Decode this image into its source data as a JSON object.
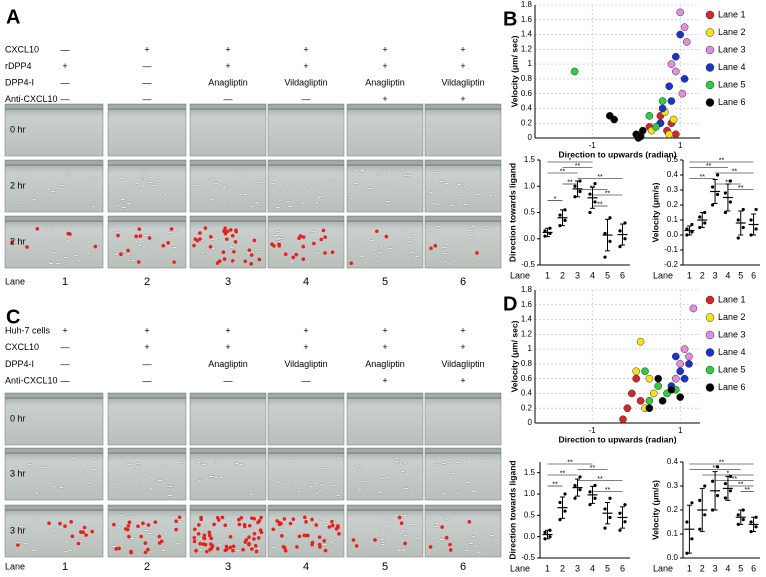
{
  "panels": [
    {
      "label": "A",
      "conditions": [
        {
          "name": "CXCL10",
          "values": [
            "—",
            "+",
            "+",
            "+",
            "+",
            "+"
          ]
        },
        {
          "name": "rDPP4",
          "values": [
            "+",
            "—",
            "+",
            "+",
            "+",
            "+"
          ]
        },
        {
          "name": "DPP4-I",
          "values": [
            "—",
            "—",
            "Anagliptin",
            "Vildagliptin",
            "Anagliptin",
            "Vildagliptin"
          ]
        },
        {
          "name": "Anti-CXCL10",
          "values": [
            "—",
            "—",
            "—",
            "—",
            "+",
            "+"
          ]
        }
      ],
      "times": [
        "0 hr",
        "2 hr",
        "2 hr"
      ],
      "lane_title": "Lane",
      "lanes": [
        "1",
        "2",
        "3",
        "4",
        "5",
        "6"
      ]
    },
    {
      "label": "C",
      "conditions": [
        {
          "name": "Huh-7 cells",
          "values": [
            "+",
            "+",
            "+",
            "+",
            "+",
            "+"
          ]
        },
        {
          "name": "CXCL10",
          "values": [
            "—",
            "+",
            "+",
            "+",
            "+",
            "+"
          ]
        },
        {
          "name": "DPP4-I",
          "values": [
            "—",
            "—",
            "Anagliptin",
            "Vildagliptin",
            "Anagliptin",
            "Vildagliptin"
          ]
        },
        {
          "name": "Anti-CXCL10",
          "values": [
            "—",
            "—",
            "—",
            "—",
            "+",
            "+"
          ]
        }
      ],
      "times": [
        "0 hr",
        "3 hr",
        "3 hr"
      ],
      "lane_title": "Lane",
      "lanes": [
        "1",
        "2",
        "3",
        "4",
        "5",
        "6"
      ]
    }
  ],
  "chart_data": [
    {
      "type": "scatter",
      "panel": "B",
      "xlabel": "Direction to upwards (radian)",
      "ylabel": "Velocity (μm/ sec)",
      "xlim": [
        -2.3,
        1.45
      ],
      "ylim": [
        0,
        1.8
      ],
      "xticks": [
        -1,
        1
      ],
      "yticks": [
        0,
        0.2,
        0.4,
        0.6,
        0.8,
        1,
        1.2,
        1.4,
        1.6,
        1.8
      ],
      "grid": true,
      "series": [
        {
          "name": "Lane 1",
          "color": "#d62728",
          "x": [
            0.3,
            0.55,
            0.7,
            0.9,
            0.8
          ],
          "y": [
            0.15,
            0.3,
            0.1,
            0.05,
            0.2
          ]
        },
        {
          "name": "Lane 2",
          "color": "#f5e31a",
          "x": [
            0.35,
            0.55,
            0.65,
            0.85,
            0.75
          ],
          "y": [
            0.1,
            0.2,
            0.35,
            0.25,
            0.05
          ]
        },
        {
          "name": "Lane 3",
          "color": "#e38de0",
          "x": [
            1.0,
            1.1,
            0.9,
            1.15,
            1.05,
            0.8
          ],
          "y": [
            1.7,
            1.5,
            0.9,
            1.3,
            0.6,
            1.0
          ]
        },
        {
          "name": "Lane 4",
          "color": "#1c33c9",
          "x": [
            0.6,
            0.75,
            0.9,
            1.0,
            1.1,
            0.55,
            0.8
          ],
          "y": [
            0.4,
            0.7,
            1.1,
            1.4,
            0.8,
            0.2,
            0.5
          ]
        },
        {
          "name": "Lane 5",
          "color": "#2ecc40",
          "x": [
            -1.4,
            0.3,
            0.45,
            0.6,
            0.1
          ],
          "y": [
            0.9,
            0.3,
            0.15,
            0.5,
            0.05
          ]
        },
        {
          "name": "Lane 6",
          "color": "#000000",
          "x": [
            -0.6,
            -0.5,
            0.0,
            0.05,
            0.1,
            0.15
          ],
          "y": [
            0.3,
            0.25,
            0.05,
            0.0,
            0.02,
            0.1
          ]
        }
      ]
    },
    {
      "type": "dot",
      "ylabel": "Direction towards ligand",
      "lane_title": "Lane",
      "categories": [
        "1",
        "2",
        "3",
        "4",
        "5",
        "6"
      ],
      "ylim": [
        -0.5,
        1.5
      ],
      "yticks": [
        -0.5,
        {
          "value": 0,
          "label": "0.0"
        },
        0.5,
        {
          "value": 1,
          "label": "1.0"
        },
        1.5
      ],
      "points": [
        [
          0.05,
          0.1,
          0.15,
          0.2
        ],
        [
          0.25,
          0.35,
          0.45,
          0.55
        ],
        [
          0.8,
          0.9,
          1.0,
          1.1
        ],
        [
          0.5,
          0.7,
          0.85,
          1.05
        ],
        [
          -0.35,
          -0.05,
          0.1,
          0.4
        ],
        [
          -0.15,
          0.0,
          0.15,
          0.3
        ]
      ],
      "mean": [
        0.12,
        0.4,
        0.95,
        0.78,
        0.07,
        0.08
      ],
      "sd": [
        0.08,
        0.15,
        0.15,
        0.2,
        0.3,
        0.2
      ],
      "brackets": [
        {
          "from": "1",
          "to": "4",
          "label": "*"
        },
        {
          "from": "2",
          "to": "4",
          "label": "**"
        },
        {
          "from": "1",
          "to": "3",
          "label": "**"
        },
        {
          "from": "3",
          "to": "6",
          "label": "**"
        },
        {
          "from": "2",
          "to": "3",
          "label": "**"
        },
        {
          "from": "3",
          "to": "5",
          "label": "**"
        },
        {
          "from": "4",
          "to": "6",
          "label": "**"
        },
        {
          "from": "1",
          "to": "2",
          "label": "*"
        },
        {
          "from": "4",
          "to": "5",
          "label": "**"
        }
      ]
    },
    {
      "type": "dot",
      "ylabel": "Velocity (μm/s)",
      "lane_title": "Lane",
      "categories": [
        "1",
        "2",
        "3",
        "4",
        "5",
        "6"
      ],
      "ylim": [
        -0.2,
        0.5
      ],
      "yticks": [
        -0.2,
        -0.1,
        {
          "value": 0,
          "label": "0.0"
        },
        0.1,
        0.2,
        0.3,
        0.4,
        0.5
      ],
      "points": [
        [
          0.0,
          0.02,
          0.04,
          0.07
        ],
        [
          0.05,
          0.08,
          0.12,
          0.15
        ],
        [
          0.2,
          0.27,
          0.32,
          0.4
        ],
        [
          0.15,
          0.22,
          0.28,
          0.36
        ],
        [
          -0.02,
          0.05,
          0.1,
          0.17
        ],
        [
          0.0,
          0.04,
          0.1,
          0.17
        ]
      ],
      "mean": [
        0.03,
        0.1,
        0.29,
        0.25,
        0.08,
        0.07
      ],
      "sd": [
        0.03,
        0.05,
        0.08,
        0.09,
        0.08,
        0.07
      ],
      "brackets": [
        {
          "from": "1",
          "to": "6",
          "label": "**"
        },
        {
          "from": "1",
          "to": "4",
          "label": "**"
        },
        {
          "from": "3",
          "to": "6",
          "label": "**"
        },
        {
          "from": "1",
          "to": "3",
          "label": "**"
        },
        {
          "from": "3",
          "to": "5",
          "label": "**"
        },
        {
          "from": "4",
          "to": "6",
          "label": "**"
        }
      ]
    },
    {
      "type": "scatter",
      "panel": "D",
      "xlabel": "Direction to upwards (radian)",
      "ylabel": "Velocity (μm/ sec)",
      "xlim": [
        -2.3,
        1.45
      ],
      "ylim": [
        0,
        1.8
      ],
      "xticks": [
        -1,
        1
      ],
      "yticks": [
        0,
        0.2,
        0.4,
        0.6,
        0.8,
        1,
        1.2,
        1.4,
        1.6,
        1.8
      ],
      "grid": true,
      "series": [
        {
          "name": "Lane 1",
          "color": "#d62728",
          "x": [
            -0.3,
            -0.1,
            0.0,
            0.1,
            -0.2
          ],
          "y": [
            0.05,
            0.4,
            0.6,
            0.3,
            0.2
          ]
        },
        {
          "name": "Lane 2",
          "color": "#f5e31a",
          "x": [
            0.1,
            0.3,
            0.4,
            0.0,
            0.2
          ],
          "y": [
            1.1,
            0.6,
            0.4,
            0.7,
            0.2
          ]
        },
        {
          "name": "Lane 3",
          "color": "#e38de0",
          "x": [
            1.3,
            1.1,
            1.0,
            0.9,
            1.2
          ],
          "y": [
            1.55,
            1.0,
            0.8,
            0.6,
            0.9
          ]
        },
        {
          "name": "Lane 4",
          "color": "#1c33c9",
          "x": [
            0.9,
            1.0,
            1.1,
            0.8,
            1.2
          ],
          "y": [
            0.9,
            0.7,
            0.6,
            0.5,
            0.8
          ]
        },
        {
          "name": "Lane 5",
          "color": "#2ecc40",
          "x": [
            0.2,
            0.5,
            0.7,
            0.3,
            0.9
          ],
          "y": [
            0.7,
            0.5,
            0.4,
            0.3,
            0.45
          ]
        },
        {
          "name": "Lane 6",
          "color": "#000000",
          "x": [
            0.3,
            0.6,
            0.8,
            0.5,
            1.0
          ],
          "y": [
            0.2,
            0.3,
            0.45,
            0.6,
            0.35
          ]
        }
      ]
    },
    {
      "type": "dot",
      "ylabel": "Direction towards ligand",
      "lane_title": "Lane",
      "categories": [
        "1",
        "2",
        "3",
        "4",
        "5",
        "6"
      ],
      "ylim": [
        -0.5,
        1.75
      ],
      "yticks": [
        -0.5,
        {
          "value": 0,
          "label": "0.0"
        },
        0.5,
        {
          "value": 1,
          "label": "1.0"
        },
        1.5
      ],
      "points": [
        [
          -0.05,
          0.0,
          0.1,
          0.15
        ],
        [
          0.4,
          0.6,
          0.8,
          1.0
        ],
        [
          0.9,
          1.1,
          1.2,
          1.4
        ],
        [
          0.75,
          0.9,
          1.05,
          1.2
        ],
        [
          0.2,
          0.45,
          0.65,
          0.9
        ],
        [
          0.15,
          0.35,
          0.55,
          0.75
        ]
      ],
      "mean": [
        0.05,
        0.68,
        1.15,
        0.98,
        0.55,
        0.45
      ],
      "sd": [
        0.1,
        0.25,
        0.2,
        0.2,
        0.25,
        0.25
      ],
      "brackets": [
        {
          "from": "1",
          "to": "4",
          "label": "**"
        },
        {
          "from": "3",
          "to": "5",
          "label": "**"
        },
        {
          "from": "1",
          "to": "3",
          "label": "**"
        },
        {
          "from": "3",
          "to": "6",
          "label": "**"
        },
        {
          "from": "1",
          "to": "2",
          "label": "**"
        },
        {
          "from": "4",
          "to": "6",
          "label": "**"
        }
      ]
    },
    {
      "type": "dot",
      "ylabel": "Velocity (μm/s)",
      "lane_title": "Lane",
      "categories": [
        "1",
        "2",
        "3",
        "4",
        "5",
        "6"
      ],
      "ylim": [
        0,
        0.4
      ],
      "yticks": [
        {
          "value": 0,
          "label": "0.0"
        },
        0.1,
        0.2,
        0.3,
        0.4
      ],
      "points": [
        [
          0.02,
          0.08,
          0.15,
          0.23
        ],
        [
          0.12,
          0.18,
          0.24,
          0.3
        ],
        [
          0.2,
          0.26,
          0.32,
          0.38
        ],
        [
          0.25,
          0.28,
          0.31,
          0.34
        ],
        [
          0.14,
          0.16,
          0.18,
          0.2
        ],
        [
          0.11,
          0.13,
          0.15,
          0.17
        ]
      ],
      "mean": [
        0.12,
        0.2,
        0.28,
        0.29,
        0.17,
        0.14
      ],
      "sd": [
        0.1,
        0.09,
        0.08,
        0.05,
        0.03,
        0.03
      ],
      "brackets": [
        {
          "from": "1",
          "to": "6",
          "label": "**"
        },
        {
          "from": "1",
          "to": "5",
          "label": "**"
        },
        {
          "from": "2",
          "to": "6",
          "label": "*"
        },
        {
          "from": "3",
          "to": "6",
          "label": "**"
        },
        {
          "from": "4",
          "to": "6",
          "label": "**"
        },
        {
          "from": "5",
          "to": "6",
          "label": "**"
        }
      ]
    }
  ]
}
